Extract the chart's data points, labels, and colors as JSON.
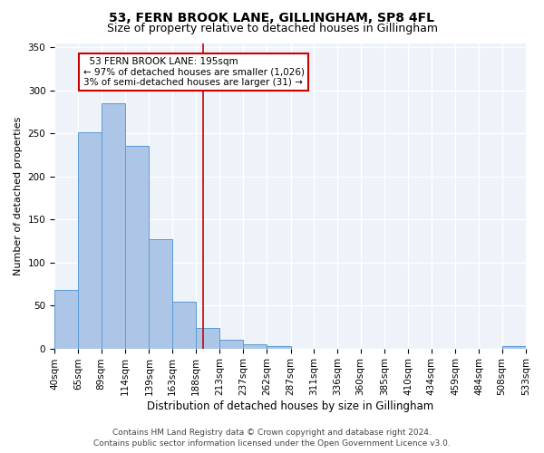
{
  "title": "53, FERN BROOK LANE, GILLINGHAM, SP8 4FL",
  "subtitle": "Size of property relative to detached houses in Gillingham",
  "xlabel": "Distribution of detached houses by size in Gillingham",
  "ylabel": "Number of detached properties",
  "footer_line1": "Contains HM Land Registry data © Crown copyright and database right 2024.",
  "footer_line2": "Contains public sector information licensed under the Open Government Licence v3.0.",
  "annotation_line1": "  53 FERN BROOK LANE: 195sqm",
  "annotation_line2": "← 97% of detached houses are smaller (1,026)",
  "annotation_line3": "3% of semi-detached houses are larger (31) →",
  "bar_values": [
    68,
    251,
    285,
    235,
    127,
    54,
    24,
    10,
    5,
    3,
    0,
    0,
    0,
    0,
    0,
    0,
    0,
    0,
    0,
    3
  ],
  "bin_edges": [
    40,
    65,
    89,
    114,
    139,
    163,
    188,
    213,
    237,
    262,
    287,
    311,
    336,
    360,
    385,
    410,
    434,
    459,
    484,
    508,
    533
  ],
  "bar_color": "#adc6e8",
  "bar_edge_color": "#5a9bd5",
  "vline_x": 195,
  "vline_color": "#cc0000",
  "annotation_box_color": "#cc0000",
  "ylim": [
    0,
    355
  ],
  "yticks": [
    0,
    50,
    100,
    150,
    200,
    250,
    300,
    350
  ],
  "bg_color": "#eef2f9",
  "grid_color": "#ffffff",
  "title_fontsize": 10,
  "subtitle_fontsize": 9,
  "xlabel_fontsize": 8.5,
  "ylabel_fontsize": 8,
  "tick_fontsize": 7.5,
  "footer_fontsize": 6.5,
  "ann_fontsize": 7.5
}
